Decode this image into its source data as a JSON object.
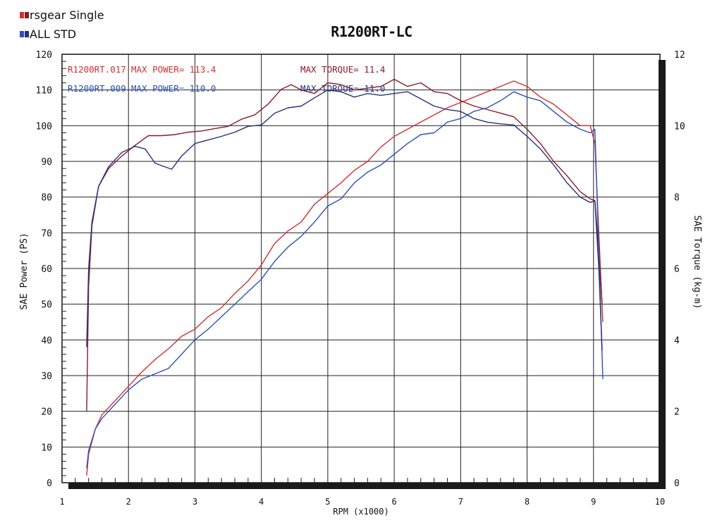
{
  "chart_data": {
    "type": "line",
    "title": "R1200RT-LC",
    "xlabel": "RPM (x1000)",
    "ylabel_left": "SAE Power (PS)",
    "ylabel_right": "SAE Torque (kg-m)",
    "xlim": [
      1,
      10
    ],
    "ylim_left": [
      0,
      120
    ],
    "ylim_right": [
      0,
      12
    ],
    "x_ticks": [
      "1",
      "2",
      "3",
      "4",
      "5",
      "6",
      "7",
      "8",
      "9",
      "10"
    ],
    "y_left_ticks": [
      "0",
      "10",
      "20",
      "30",
      "40",
      "50",
      "60",
      "70",
      "80",
      "90",
      "100",
      "110",
      "120"
    ],
    "y_right_ticks": [
      "0",
      "2",
      "4",
      "6",
      "8",
      "10",
      "12"
    ],
    "grid": true,
    "legend": [
      {
        "label": "rsgear Single",
        "swatch": [
          "#d03030",
          "#8b1a2a"
        ]
      },
      {
        "label": "ALL STD",
        "swatch": [
          "#2c50b8",
          "#27307a"
        ]
      }
    ],
    "annotations": [
      {
        "series": "R1200RT.017",
        "text": "R1200RT.017",
        "power": "MAX POWER= 113.4",
        "torque": "MAX TORQUE= 11.4",
        "color": "#d03030",
        "torque_color": "#8b1a2a"
      },
      {
        "series": "R1200RT.009",
        "text": "R1200RT.009",
        "power": "MAX POWER= 110.0",
        "torque": "MAX TORQUE= 11.0",
        "color": "#2c50b8",
        "torque_color": "#27307a"
      }
    ],
    "series": [
      {
        "name": "R1200RT.017",
        "kind": "power",
        "axis": "left",
        "color": "#d03030",
        "x": [
          1.37,
          1.4,
          1.5,
          1.6,
          1.8,
          2.0,
          2.2,
          2.4,
          2.6,
          2.8,
          3.0,
          3.2,
          3.4,
          3.6,
          3.8,
          4.0,
          4.2,
          4.4,
          4.6,
          4.8,
          5.0,
          5.2,
          5.4,
          5.6,
          5.8,
          6.0,
          6.2,
          6.4,
          6.6,
          6.8,
          7.0,
          7.2,
          7.4,
          7.6,
          7.8,
          8.0,
          8.2,
          8.4,
          8.6,
          8.8,
          8.95,
          9.02,
          9.08,
          9.14
        ],
        "y": [
          2,
          8,
          15,
          19,
          23,
          27,
          31,
          34.5,
          37.5,
          41,
          43,
          46.5,
          49,
          53,
          56.5,
          61,
          67,
          70.5,
          73,
          78,
          81,
          84,
          87.5,
          90,
          94,
          97,
          99,
          101,
          103,
          105,
          106.5,
          108,
          109.5,
          111,
          112.5,
          111,
          108,
          106,
          103,
          100,
          100,
          95,
          70,
          45
        ]
      },
      {
        "name": "R1200RT.017",
        "kind": "torque",
        "axis": "right",
        "color": "#8b1a2a",
        "x": [
          1.37,
          1.4,
          1.45,
          1.55,
          1.7,
          1.9,
          2.1,
          2.3,
          2.5,
          2.7,
          2.9,
          3.1,
          3.3,
          3.5,
          3.7,
          3.9,
          4.1,
          4.3,
          4.45,
          4.6,
          4.8,
          5.0,
          5.2,
          5.4,
          5.6,
          5.8,
          6.0,
          6.2,
          6.4,
          6.6,
          6.8,
          7.0,
          7.2,
          7.4,
          7.6,
          7.8,
          8.0,
          8.2,
          8.4,
          8.6,
          8.8,
          8.95,
          9.02,
          9.08,
          9.13
        ],
        "y": [
          2,
          5.5,
          7.2,
          8.3,
          8.8,
          9.15,
          9.45,
          9.72,
          9.72,
          9.75,
          9.82,
          9.85,
          9.92,
          9.98,
          10.18,
          10.3,
          10.6,
          11.02,
          11.15,
          11.0,
          10.9,
          11.2,
          11.15,
          11.0,
          11.05,
          11.1,
          11.3,
          11.1,
          11.2,
          10.95,
          10.9,
          10.7,
          10.55,
          10.45,
          10.35,
          10.25,
          9.9,
          9.5,
          9.0,
          8.6,
          8.15,
          7.95,
          7.9,
          6.5,
          5.0
        ]
      },
      {
        "name": "R1200RT.009",
        "kind": "power",
        "axis": "left",
        "color": "#2c50b8",
        "x": [
          1.37,
          1.4,
          1.5,
          1.6,
          1.8,
          2.0,
          2.2,
          2.4,
          2.6,
          2.8,
          3.0,
          3.2,
          3.4,
          3.6,
          3.8,
          4.0,
          4.2,
          4.4,
          4.6,
          4.8,
          5.0,
          5.2,
          5.4,
          5.6,
          5.8,
          6.0,
          6.2,
          6.4,
          6.6,
          6.8,
          7.0,
          7.2,
          7.4,
          7.6,
          7.8,
          8.0,
          8.2,
          8.4,
          8.6,
          8.8,
          8.95,
          9.02,
          9.08,
          9.14
        ],
        "y": [
          4,
          9,
          15,
          18,
          22,
          26,
          29,
          30.5,
          32,
          36,
          40,
          43,
          46.5,
          50,
          53.5,
          57,
          62,
          66,
          69,
          73,
          77.5,
          79.5,
          84,
          87,
          89,
          92,
          95,
          97.5,
          98,
          101,
          102,
          104,
          105,
          107,
          109.5,
          108,
          107,
          104,
          101,
          99,
          98,
          99,
          65,
          29
        ]
      },
      {
        "name": "R1200RT.009",
        "kind": "torque",
        "axis": "right",
        "color": "#27307a",
        "x": [
          1.37,
          1.4,
          1.45,
          1.55,
          1.7,
          1.9,
          2.1,
          2.25,
          2.4,
          2.5,
          2.65,
          2.8,
          3.0,
          3.2,
          3.4,
          3.6,
          3.8,
          4.0,
          4.2,
          4.4,
          4.6,
          4.8,
          5.0,
          5.2,
          5.4,
          5.6,
          5.8,
          6.0,
          6.2,
          6.4,
          6.6,
          6.8,
          7.0,
          7.2,
          7.4,
          7.6,
          7.8,
          8.0,
          8.2,
          8.4,
          8.6,
          8.8,
          8.95,
          9.02,
          9.08,
          9.13
        ],
        "y": [
          3.8,
          6.0,
          7.3,
          8.3,
          8.85,
          9.25,
          9.42,
          9.35,
          8.95,
          8.88,
          8.78,
          9.15,
          9.5,
          9.6,
          9.7,
          9.82,
          9.98,
          10.02,
          10.35,
          10.5,
          10.55,
          10.78,
          11.0,
          10.95,
          10.8,
          10.9,
          10.85,
          10.9,
          10.95,
          10.75,
          10.55,
          10.45,
          10.4,
          10.2,
          10.1,
          10.05,
          10.02,
          9.7,
          9.35,
          8.9,
          8.4,
          8.0,
          7.85,
          7.9,
          6.0,
          3.7
        ]
      }
    ]
  }
}
